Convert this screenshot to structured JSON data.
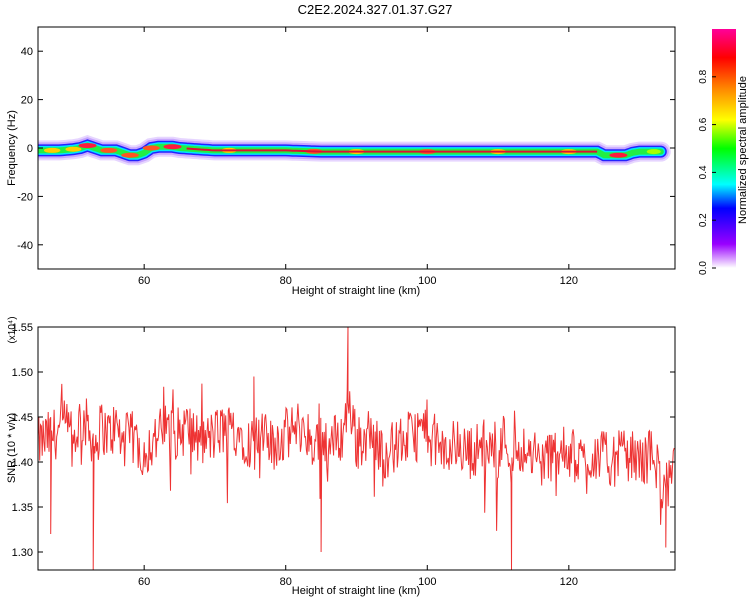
{
  "title": "C2E2.2024.327.01.37.G27",
  "chart_data": [
    {
      "type": "heatmap",
      "xlabel": "Height of straight line (km)",
      "ylabel": "Frequency (Hz)",
      "xlim": [
        45,
        135
      ],
      "ylim": [
        -50,
        50
      ],
      "xticks": [
        60,
        80,
        100,
        120
      ],
      "yticks": [
        -40,
        -20,
        0,
        20,
        40
      ],
      "colorbar": {
        "label": "Normalized spectral amplitude",
        "range": [
          0,
          1
        ],
        "ticks": [
          "0.0",
          "0.2",
          "0.4",
          "0.6",
          "0.8"
        ]
      },
      "band": {
        "x": [
          45,
          48,
          50,
          51,
          52,
          53,
          54,
          56,
          57,
          58,
          59,
          60,
          61,
          62,
          63,
          64,
          65,
          70,
          80,
          85,
          90,
          100,
          110,
          120,
          124,
          125,
          126,
          128,
          129,
          130,
          133
        ],
        "center_freq": [
          -1,
          -1,
          -0.5,
          0,
          1,
          0,
          -1,
          -1,
          -2,
          -3,
          -3,
          -2,
          0,
          0.5,
          0.5,
          0.5,
          0,
          -1,
          -1,
          -1.5,
          -1.5,
          -1.5,
          -1.5,
          -1.5,
          -1.5,
          -3,
          -3,
          -3,
          -2,
          -1.5,
          -1.5
        ],
        "peaks": [
          {
            "x": 47,
            "amp": 0.85
          },
          {
            "x": 50,
            "amp": 0.8
          },
          {
            "x": 52,
            "amp": 1.0
          },
          {
            "x": 55,
            "amp": 0.9
          },
          {
            "x": 58,
            "amp": 0.95
          },
          {
            "x": 61,
            "amp": 0.9
          },
          {
            "x": 64,
            "amp": 1.0
          },
          {
            "x": 72,
            "amp": 0.75
          },
          {
            "x": 84,
            "amp": 0.9
          },
          {
            "x": 90,
            "amp": 0.85
          },
          {
            "x": 100,
            "amp": 0.9
          },
          {
            "x": 110,
            "amp": 0.85
          },
          {
            "x": 120,
            "amp": 0.85
          },
          {
            "x": 127,
            "amp": 1.0
          },
          {
            "x": 132,
            "amp": 0.6
          }
        ]
      }
    },
    {
      "type": "line",
      "xlabel": "Height of straight line (km)",
      "ylabel": "SNR (10 * v/v)",
      "scale_label": "(x10⁴)",
      "xlim": [
        45,
        135
      ],
      "ylim": [
        1.28,
        1.55
      ],
      "xticks": [
        60,
        80,
        100,
        120
      ],
      "yticks": [
        "1.30",
        "1.35",
        "1.40",
        "1.45",
        "1.50",
        "1.55"
      ],
      "color": "#ee3333",
      "series": [
        {
          "x": [
            45,
            47,
            49,
            50,
            51,
            52,
            53,
            54,
            55,
            56,
            57,
            58,
            59,
            60,
            62,
            64,
            65,
            66,
            68,
            70,
            72,
            74,
            75,
            76,
            78,
            80,
            82,
            84,
            85,
            86,
            88,
            89,
            90,
            92,
            94,
            96,
            98,
            100,
            102,
            104,
            106,
            108,
            110,
            111,
            112,
            113,
            114,
            116,
            118,
            120,
            122,
            124,
            126,
            128,
            130,
            132,
            133,
            134,
            135
          ],
          "values": [
            1.42,
            1.43,
            1.44,
            1.42,
            1.45,
            1.44,
            1.42,
            1.44,
            1.43,
            1.44,
            1.42,
            1.43,
            1.42,
            1.41,
            1.43,
            1.44,
            1.43,
            1.44,
            1.42,
            1.43,
            1.44,
            1.43,
            1.42,
            1.43,
            1.42,
            1.43,
            1.44,
            1.42,
            1.43,
            1.42,
            1.43,
            1.47,
            1.42,
            1.43,
            1.41,
            1.42,
            1.43,
            1.44,
            1.41,
            1.42,
            1.41,
            1.42,
            1.41,
            1.43,
            1.4,
            1.42,
            1.41,
            1.4,
            1.41,
            1.41,
            1.4,
            1.41,
            1.4,
            1.41,
            1.4,
            1.41,
            1.38,
            1.37,
            1.39
          ]
        }
      ],
      "extremes": [
        {
          "x": 52.8,
          "y": 1.28
        },
        {
          "x": 88.8,
          "y": 1.553
        },
        {
          "x": 85,
          "y": 1.3
        },
        {
          "x": 111.9,
          "y": 1.28
        },
        {
          "x": 75.5,
          "y": 1.495
        },
        {
          "x": 46.8,
          "y": 1.32
        },
        {
          "x": 133.7,
          "y": 1.305
        }
      ]
    }
  ]
}
